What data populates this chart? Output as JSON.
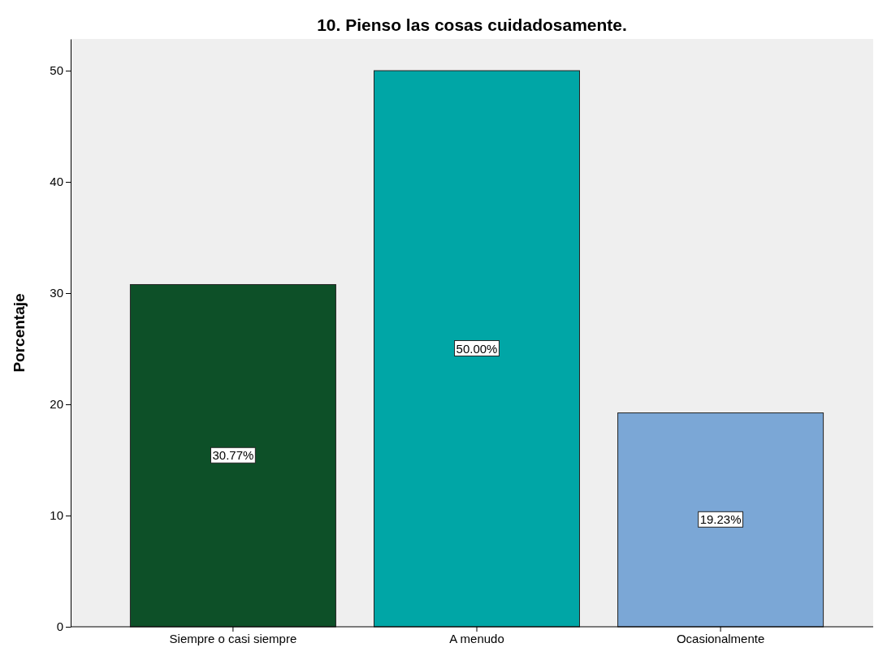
{
  "chart_data": {
    "type": "bar",
    "title": "10. Pienso las cosas cuidadosamente.",
    "ylabel": "Porcentaje",
    "categories": [
      "Siempre o casi siempre",
      "A menudo",
      "Ocasionalmente"
    ],
    "values": [
      30.77,
      50.0,
      19.23
    ],
    "colors": [
      "#0d5028",
      "#00a6a6",
      "#7ba7d6"
    ],
    "value_labels": [
      "30.77%",
      "50.00%",
      "19.23%"
    ],
    "ylim": [
      0,
      52.85
    ],
    "yticks": [
      0,
      10,
      20,
      30,
      40,
      50
    ],
    "grid": false
  }
}
